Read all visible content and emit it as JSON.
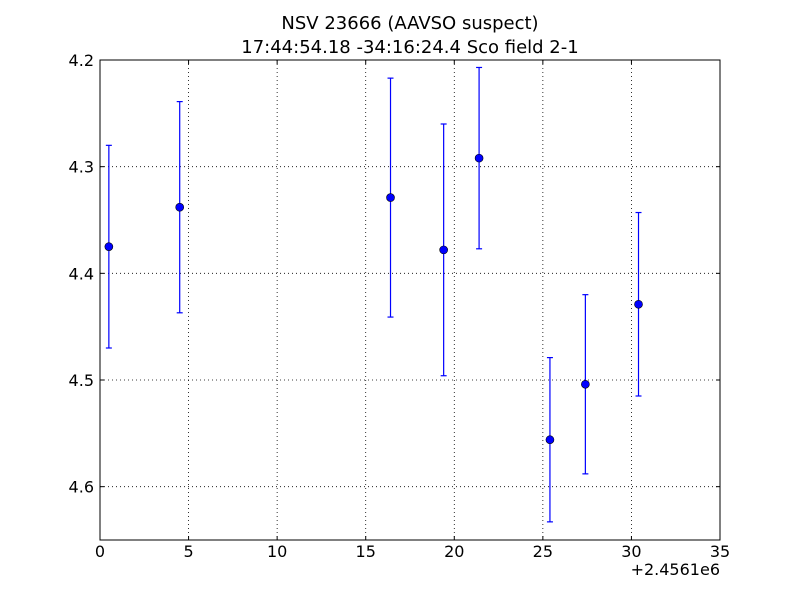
{
  "chart_data": {
    "type": "scatter",
    "title": "NSV 23666  (AAVSO suspect)",
    "subtitle": "17:44:54.18 -34:16:24.4 Sco field 2-1",
    "xlabel": "",
    "ylabel": "",
    "x_offset_label": "+2.4561e6",
    "xlim": [
      0,
      35
    ],
    "ylim": [
      4.65,
      4.2
    ],
    "y_inverted": true,
    "grid": true,
    "grid_style": "dotted",
    "x_ticks": [
      0,
      5,
      10,
      15,
      20,
      25,
      30,
      35
    ],
    "x_tick_labels": [
      "0",
      "5",
      "10",
      "15",
      "20",
      "25",
      "30",
      "35"
    ],
    "y_ticks": [
      4.2,
      4.3,
      4.4,
      4.5,
      4.6
    ],
    "y_tick_labels": [
      "4.2",
      "4.3",
      "4.4",
      "4.5",
      "4.6"
    ],
    "color": "#0000ff",
    "series": [
      {
        "points": [
          {
            "x": 0.5,
            "y": 4.375,
            "err": 0.095
          },
          {
            "x": 4.5,
            "y": 4.338,
            "err": 0.099
          },
          {
            "x": 16.4,
            "y": 4.329,
            "err": 0.112
          },
          {
            "x": 19.4,
            "y": 4.378,
            "err": 0.118
          },
          {
            "x": 21.4,
            "y": 4.292,
            "err": 0.085
          },
          {
            "x": 25.4,
            "y": 4.556,
            "err": 0.077
          },
          {
            "x": 27.4,
            "y": 4.504,
            "err": 0.084
          },
          {
            "x": 30.4,
            "y": 4.429,
            "err": 0.086
          }
        ]
      }
    ]
  }
}
